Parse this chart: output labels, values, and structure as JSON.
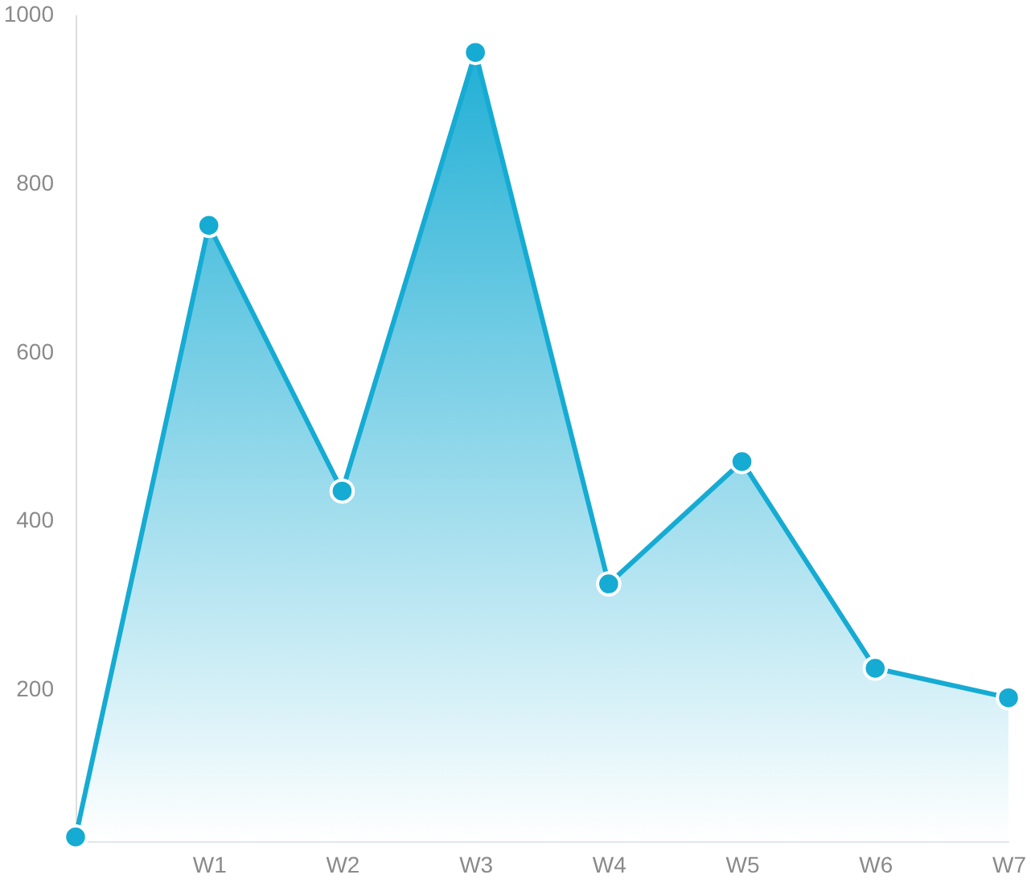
{
  "chart_data": {
    "type": "area",
    "categories": [
      null,
      "W1",
      "W2",
      "W3",
      "W4",
      "W5",
      "W6",
      "W7"
    ],
    "series": [
      {
        "color": "#15abd3",
        "values": [
          25,
          750,
          435,
          955,
          325,
          470,
          225,
          190
        ]
      }
    ],
    "ylim": [
      20,
      1000
    ],
    "yticks": [
      200,
      400,
      600,
      800,
      1000
    ],
    "marker": "circle"
  }
}
